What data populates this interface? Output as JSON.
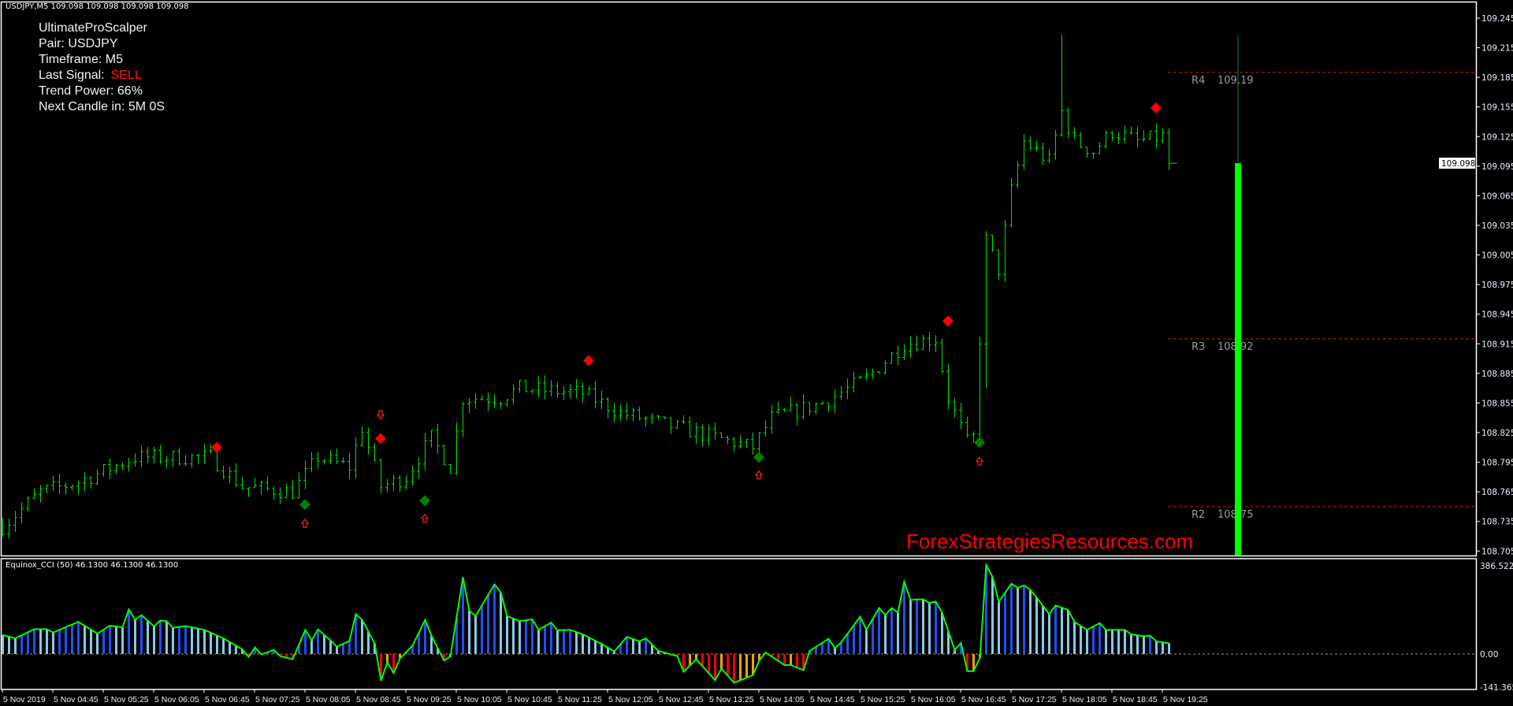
{
  "window": {
    "header": "USDJPY,M5  109.098 109.098 109.098 109.098",
    "indicator_header": "Equinox_CCI (50) 46.1300 46.1300 46.1300"
  },
  "info_panel": {
    "title": "UltimateProScalper",
    "pair": "Pair: USDJPY",
    "timeframe": "Timeframe: M5",
    "last_signal_label": "Last Signal:",
    "last_signal_value": "SELL",
    "trend_power": "Trend Power: 66%",
    "next_candle": "Next Candle in: 5M 0S"
  },
  "watermark": "ForexStrategiesResources.com",
  "colors": {
    "bars": "#00e000",
    "sell": "#ff0000",
    "buy": "#008000",
    "pivot": "#c81e1e",
    "cci_line": "#00ff00",
    "cci_up": "#1e50ff",
    "cci_down": "#87c8e8",
    "cci_neg_down": "#ff0000",
    "cci_neg_up": "#ffa000",
    "power_bar": "#00ff00"
  },
  "chart_data": [
    {
      "type": "ohlc",
      "symbol": "USDJPY",
      "timeframe": "M5",
      "ylim": [
        108.69,
        109.26
      ],
      "y_ticks": [
        "109.245",
        "109.215",
        "109.185",
        "109.155",
        "109.125",
        "109.095",
        "109.065",
        "109.035",
        "109.005",
        "108.975",
        "108.945",
        "108.915",
        "108.885",
        "108.855",
        "108.825",
        "108.795",
        "108.765",
        "108.735",
        "108.705"
      ],
      "current_price": "109.098",
      "x_ticks": [
        "5 Nov 2019",
        "5 Nov 04:45",
        "5 Nov 05:25",
        "5 Nov 06:05",
        "5 Nov 06:45",
        "5 Nov 07:25",
        "5 Nov 08:05",
        "5 Nov 08:45",
        "5 Nov 09:25",
        "5 Nov 10:05",
        "5 Nov 10:45",
        "5 Nov 11:25",
        "5 Nov 12:05",
        "5 Nov 12:45",
        "5 Nov 13:25",
        "5 Nov 14:05",
        "5 Nov 14:45",
        "5 Nov 15:25",
        "5 Nov 16:05",
        "5 Nov 16:45",
        "5 Nov 17:25",
        "5 Nov 18:05",
        "5 Nov 18:45",
        "5 Nov 19:25"
      ],
      "close_path": [
        [
          "04:05",
          108.73
        ],
        [
          "04:35",
          108.765
        ],
        [
          "05:05",
          108.775
        ],
        [
          "05:50",
          108.8
        ],
        [
          "06:50",
          108.8
        ],
        [
          "07:15",
          108.77
        ],
        [
          "07:55",
          108.765
        ],
        [
          "08:15",
          108.8
        ],
        [
          "08:40",
          108.79
        ],
        [
          "08:50",
          108.83
        ],
        [
          "09:05",
          108.77
        ],
        [
          "09:25",
          108.78
        ],
        [
          "09:45",
          108.82
        ],
        [
          "10:00",
          108.79
        ],
        [
          "10:10",
          108.86
        ],
        [
          "10:40",
          108.86
        ],
        [
          "10:55",
          108.87
        ],
        [
          "11:45",
          108.865
        ],
        [
          "12:15",
          108.845
        ],
        [
          "13:00",
          108.83
        ],
        [
          "13:30",
          108.82
        ],
        [
          "14:00",
          108.81
        ],
        [
          "14:15",
          108.84
        ],
        [
          "14:55",
          108.855
        ],
        [
          "15:30",
          108.88
        ],
        [
          "16:00",
          108.915
        ],
        [
          "16:25",
          108.92
        ],
        [
          "16:35",
          108.86
        ],
        [
          "16:50",
          108.815
        ],
        [
          "16:55",
          108.82
        ],
        [
          "17:05",
          109.02
        ],
        [
          "17:15",
          108.99
        ],
        [
          "17:25",
          109.07
        ],
        [
          "17:35",
          109.12
        ],
        [
          "17:55",
          109.1
        ],
        [
          "18:05",
          109.15
        ],
        [
          "18:15",
          109.12
        ],
        [
          "18:30",
          109.11
        ],
        [
          "18:45",
          109.13
        ],
        [
          "19:05",
          109.12
        ],
        [
          "19:25",
          109.125
        ],
        [
          "19:30",
          109.098
        ]
      ],
      "sell_signals": [
        [
          "06:55",
          108.81
        ],
        [
          "09:05",
          108.819
        ],
        [
          "11:50",
          108.898
        ],
        [
          "16:35",
          108.938
        ],
        [
          "19:20",
          109.154
        ]
      ],
      "buy_signals": [
        [
          "08:05",
          108.752
        ],
        [
          "09:40",
          108.756
        ],
        [
          "14:05",
          108.8
        ],
        [
          "17:00",
          108.815
        ]
      ],
      "up_arrows": [
        [
          "08:05",
          108.733
        ],
        [
          "09:40",
          108.738
        ],
        [
          "14:05",
          108.782
        ],
        [
          "17:00",
          108.796
        ]
      ],
      "down_arrows": [
        [
          "09:05",
          108.843
        ]
      ],
      "pivots": [
        {
          "label": "R4",
          "value": "109.19"
        },
        {
          "label": "R3",
          "value": "108.92"
        },
        {
          "label": "R2",
          "value": "108.75"
        }
      ],
      "power_bar": {
        "low": 108.69,
        "high": 109.098,
        "wick_high": 109.227
      }
    },
    {
      "type": "histogram+line",
      "name": "Equinox_CCI (50)",
      "y_ticks": [
        "386.5224",
        "0.00",
        "-141.3658"
      ],
      "ylim": [
        -141.3658,
        386.5224
      ],
      "values": [
        [
          "04:05",
          81
        ],
        [
          "04:15",
          67
        ],
        [
          "04:30",
          106
        ],
        [
          "04:40",
          106
        ],
        [
          "04:45",
          92
        ],
        [
          "05:05",
          137
        ],
        [
          "05:20",
          87
        ],
        [
          "05:30",
          121
        ],
        [
          "05:40",
          114
        ],
        [
          "05:45",
          190
        ],
        [
          "05:50",
          146
        ],
        [
          "05:55",
          166
        ],
        [
          "06:05",
          118
        ],
        [
          "06:10",
          143
        ],
        [
          "06:15",
          140
        ],
        [
          "06:20",
          112
        ],
        [
          "06:30",
          119
        ],
        [
          "06:45",
          103
        ],
        [
          "07:00",
          67
        ],
        [
          "07:15",
          20
        ],
        [
          "07:20",
          -13
        ],
        [
          "07:25",
          28
        ],
        [
          "07:30",
          -2
        ],
        [
          "07:40",
          17
        ],
        [
          "07:45",
          -9
        ],
        [
          "07:55",
          -22
        ],
        [
          "08:05",
          103
        ],
        [
          "08:10",
          58
        ],
        [
          "08:15",
          105
        ],
        [
          "08:25",
          58
        ],
        [
          "08:30",
          31
        ],
        [
          "08:40",
          56
        ],
        [
          "08:45",
          170
        ],
        [
          "08:50",
          146
        ],
        [
          "09:00",
          45
        ],
        [
          "09:05",
          -114
        ],
        [
          "09:10",
          -36
        ],
        [
          "09:15",
          -81
        ],
        [
          "09:20",
          -20
        ],
        [
          "09:30",
          36
        ],
        [
          "09:40",
          146
        ],
        [
          "09:45",
          78
        ],
        [
          "09:55",
          -28
        ],
        [
          "10:00",
          -11
        ],
        [
          "10:10",
          327
        ],
        [
          "10:15",
          185
        ],
        [
          "10:20",
          162
        ],
        [
          "10:35",
          297
        ],
        [
          "10:40",
          263
        ],
        [
          "10:45",
          162
        ],
        [
          "10:55",
          140
        ],
        [
          "11:05",
          148
        ],
        [
          "11:10",
          103
        ],
        [
          "11:20",
          134
        ],
        [
          "11:25",
          101
        ],
        [
          "11:35",
          103
        ],
        [
          "11:45",
          84
        ],
        [
          "12:00",
          43
        ],
        [
          "12:10",
          11
        ],
        [
          "12:20",
          73
        ],
        [
          "12:30",
          54
        ],
        [
          "12:35",
          67
        ],
        [
          "12:45",
          13
        ],
        [
          "13:00",
          -9
        ],
        [
          "13:05",
          -76
        ],
        [
          "13:15",
          -22
        ],
        [
          "13:30",
          -112
        ],
        [
          "13:35",
          -62
        ],
        [
          "13:45",
          -123
        ],
        [
          "14:00",
          -90
        ],
        [
          "14:05",
          -28
        ],
        [
          "14:10",
          6
        ],
        [
          "14:25",
          -47
        ],
        [
          "14:30",
          -47
        ],
        [
          "14:40",
          -69
        ],
        [
          "14:45",
          13
        ],
        [
          "15:00",
          65
        ],
        [
          "15:05",
          25
        ],
        [
          "15:10",
          50
        ],
        [
          "15:25",
          159
        ],
        [
          "15:30",
          103
        ],
        [
          "15:40",
          196
        ],
        [
          "15:45",
          166
        ],
        [
          "15:50",
          196
        ],
        [
          "15:55",
          177
        ],
        [
          "16:00",
          308
        ],
        [
          "16:05",
          230
        ],
        [
          "16:10",
          233
        ],
        [
          "16:15",
          233
        ],
        [
          "16:20",
          218
        ],
        [
          "16:25",
          224
        ],
        [
          "16:30",
          177
        ],
        [
          "16:40",
          17
        ],
        [
          "16:45",
          47
        ],
        [
          "16:50",
          -73
        ],
        [
          "16:55",
          -73
        ],
        [
          "17:00",
          -17
        ],
        [
          "17:05",
          379
        ],
        [
          "17:10",
          330
        ],
        [
          "17:15",
          222
        ],
        [
          "17:25",
          300
        ],
        [
          "17:30",
          282
        ],
        [
          "17:35",
          293
        ],
        [
          "17:40",
          274
        ],
        [
          "17:45",
          241
        ],
        [
          "17:55",
          170
        ],
        [
          "18:00",
          207
        ],
        [
          "18:10",
          188
        ],
        [
          "18:15",
          137
        ],
        [
          "18:25",
          103
        ],
        [
          "18:35",
          132
        ],
        [
          "18:40",
          103
        ],
        [
          "18:55",
          103
        ],
        [
          "19:00",
          84
        ],
        [
          "19:10",
          76
        ],
        [
          "19:15",
          78
        ],
        [
          "19:20",
          54
        ],
        [
          "19:30",
          46.13
        ]
      ]
    }
  ]
}
